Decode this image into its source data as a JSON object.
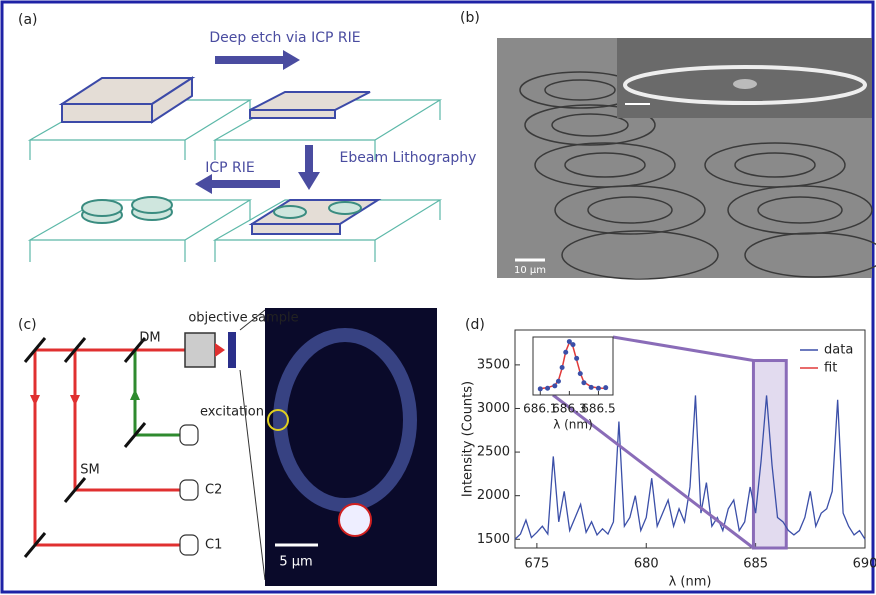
{
  "panels": {
    "a": {
      "label": "(a)",
      "steps": [
        "Deep etch via ICP RIE",
        "Ebeam Lithography",
        "ICP RIE"
      ]
    },
    "b": {
      "label": "(b)",
      "scale_bar": "10 µm"
    },
    "c": {
      "label": "(c)",
      "labels": [
        "objective",
        "sample",
        "DM",
        "excitation",
        "SM",
        "C2",
        "C1"
      ],
      "scale_bar": "5 µm"
    },
    "d": {
      "label": "(d)"
    }
  },
  "chart_data": [
    {
      "type": "line",
      "x_label": "λ (nm)",
      "y_label": "Intensity (Counts)",
      "xlim": [
        674,
        690
      ],
      "xticks": [
        675,
        680,
        685,
        690
      ],
      "ylim": [
        1400,
        3900
      ],
      "yticks": [
        1500,
        2000,
        2500,
        3000,
        3500
      ],
      "highlight": [
        684.9,
        686.4
      ],
      "series": [
        {
          "name": "data",
          "color": "#3b4fa8",
          "x": [
            674,
            674.25,
            674.5,
            674.75,
            675,
            675.25,
            675.5,
            675.75,
            676,
            676.25,
            676.5,
            676.75,
            677,
            677.25,
            677.5,
            677.75,
            678,
            678.25,
            678.5,
            678.75,
            679,
            679.25,
            679.5,
            679.75,
            680,
            680.25,
            680.5,
            680.75,
            681,
            681.25,
            681.5,
            681.75,
            682,
            682.25,
            682.5,
            682.75,
            683,
            683.25,
            683.5,
            683.75,
            684,
            684.25,
            684.5,
            684.75,
            685,
            685.25,
            685.5,
            685.75,
            686,
            686.25,
            686.5,
            686.75,
            687,
            687.25,
            687.5,
            687.75,
            688,
            688.25,
            688.5,
            688.75,
            689,
            689.25,
            689.5,
            689.75,
            690
          ],
          "values": [
            1500,
            1560,
            1720,
            1520,
            1580,
            1650,
            1560,
            2450,
            1700,
            2050,
            1600,
            1750,
            1900,
            1580,
            1700,
            1550,
            1620,
            1560,
            1700,
            2850,
            1650,
            1750,
            2000,
            1600,
            1750,
            2200,
            1650,
            1800,
            1950,
            1650,
            1850,
            1700,
            2100,
            3150,
            1800,
            2150,
            1650,
            1750,
            1600,
            1850,
            1950,
            1600,
            1700,
            2100,
            1800,
            2400,
            3150,
            2350,
            1750,
            1700,
            1600,
            1550,
            1600,
            1750,
            2050,
            1650,
            1800,
            1850,
            2050,
            3100,
            1800,
            1650,
            1550,
            1600,
            1500
          ]
        }
      ]
    },
    {
      "type": "scatter-line",
      "x_label": "λ (nm)",
      "xlim": [
        686.05,
        686.6
      ],
      "xticks": [
        686.1,
        686.3,
        686.5
      ],
      "ylim": [
        1400,
        3300
      ],
      "series": [
        {
          "name": "data",
          "color": "#3b4fa8",
          "x": [
            686.1,
            686.15,
            686.2,
            686.225,
            686.25,
            686.275,
            686.3,
            686.325,
            686.35,
            686.375,
            686.4,
            686.45,
            686.5,
            686.55
          ],
          "values": [
            1600,
            1620,
            1700,
            1850,
            2300,
            2800,
            3150,
            3050,
            2600,
            2100,
            1800,
            1650,
            1620,
            1640
          ]
        },
        {
          "name": "fit",
          "color": "#e03a3a",
          "x": [
            686.1,
            686.15,
            686.2,
            686.225,
            686.25,
            686.275,
            686.3,
            686.325,
            686.35,
            686.375,
            686.4,
            686.45,
            686.5,
            686.55
          ],
          "values": [
            1610,
            1640,
            1720,
            1880,
            2280,
            2820,
            3120,
            2980,
            2550,
            2120,
            1820,
            1670,
            1630,
            1615
          ]
        }
      ]
    }
  ]
}
